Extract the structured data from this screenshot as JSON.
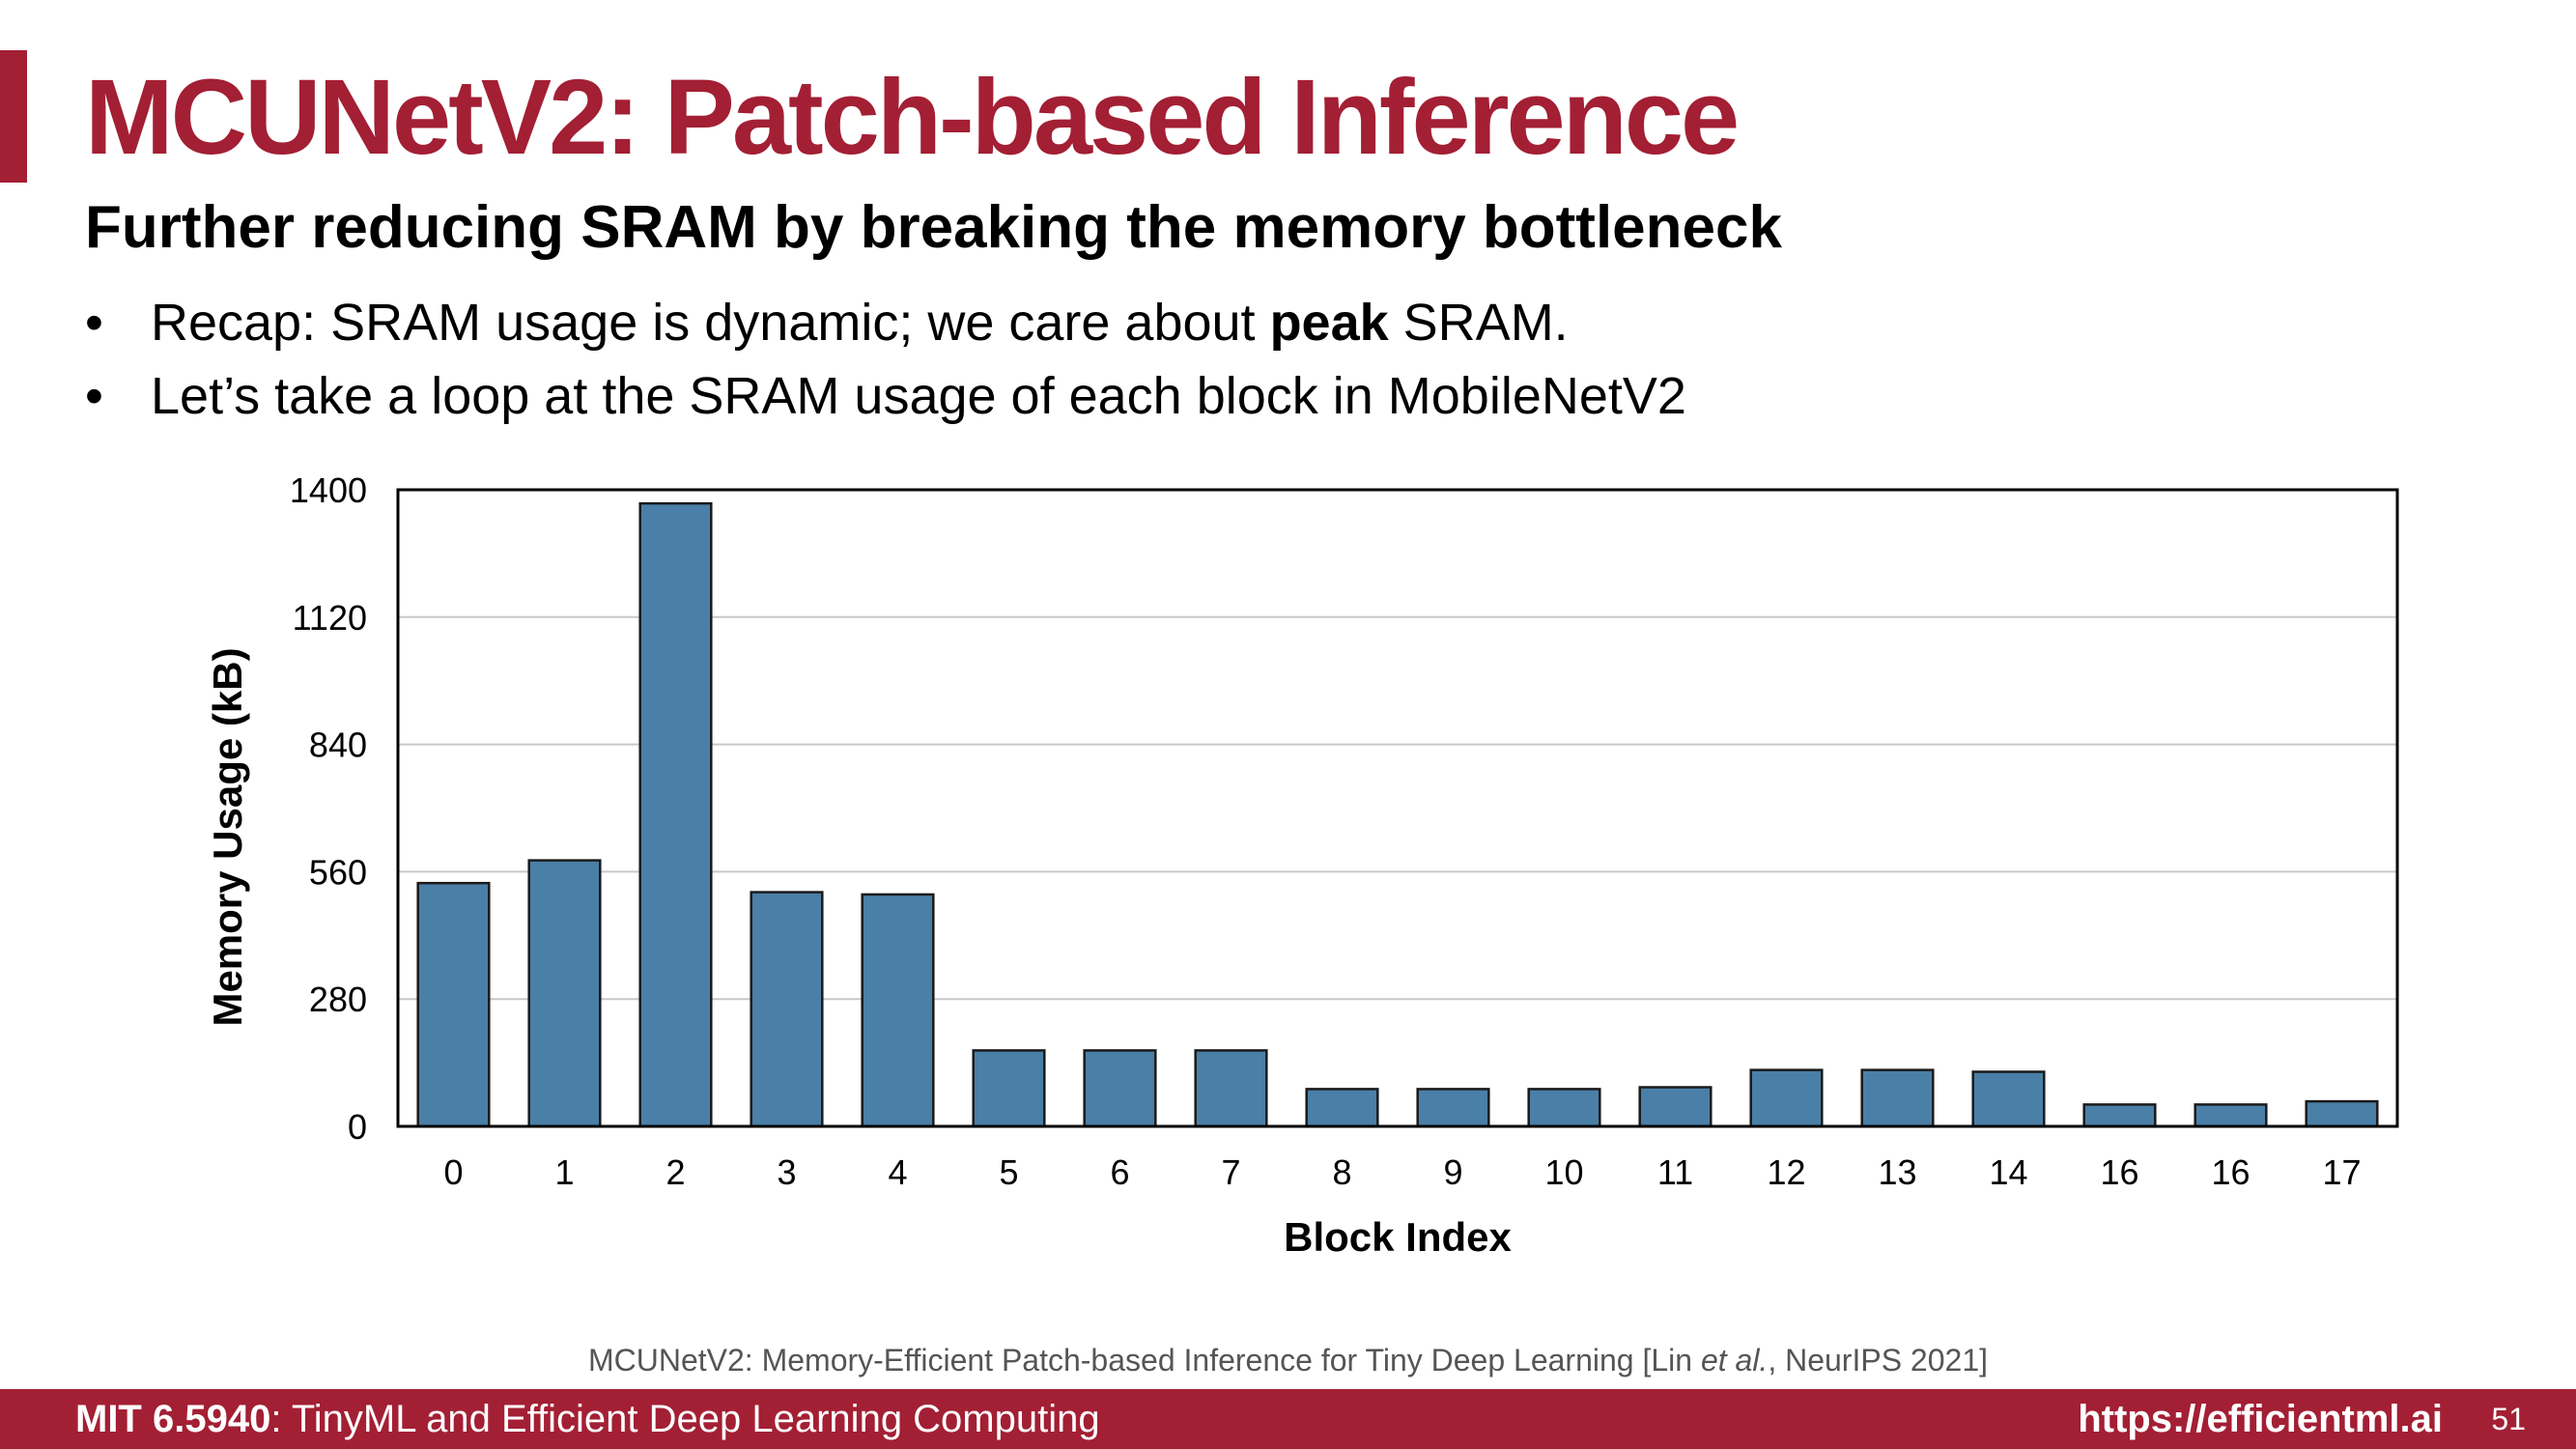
{
  "slide": {
    "title": "MCUNetV2: Patch-based Inference",
    "subtitle": "Further reducing SRAM by breaking the memory bottleneck",
    "bullets": [
      {
        "before": "Recap: SRAM usage is dynamic; we care about ",
        "bold": "peak",
        "after": " SRAM."
      },
      {
        "text": "Let’s take a loop at the SRAM usage of each block in MobileNetV2"
      }
    ],
    "bullet_symbol": "•",
    "citation": {
      "before": "MCUNetV2: Memory-Efficient Patch-based Inference for Tiny Deep Learning [Lin ",
      "italic": "et al.",
      "after": ", NeurIPS 2021]"
    },
    "footer": {
      "course_code": "MIT 6.5940",
      "course_name": ": TinyML and Efficient Deep Learning Computing",
      "url": "https://efficientml.ai",
      "page": "51"
    }
  },
  "colors": {
    "accent": "#a31f34",
    "bar_fill": "#4a7fa7",
    "bar_stroke": "#1a1a1a",
    "grid": "#c8c8c8"
  },
  "chart_data": {
    "type": "bar",
    "categories": [
      "0",
      "1",
      "2",
      "3",
      "4",
      "5",
      "6",
      "7",
      "8",
      "9",
      "10",
      "11",
      "12",
      "13",
      "14",
      "16",
      "16",
      "17"
    ],
    "values": [
      535,
      585,
      1370,
      515,
      510,
      167,
      167,
      167,
      82,
      82,
      82,
      86,
      124,
      124,
      120,
      48,
      48,
      55
    ],
    "xlabel": "Block Index",
    "ylabel": "Memory Usage (kB)",
    "yticks": [
      0,
      280,
      560,
      840,
      1120,
      1400
    ],
    "ylim": [
      0,
      1400
    ],
    "grid": "horizontal"
  }
}
